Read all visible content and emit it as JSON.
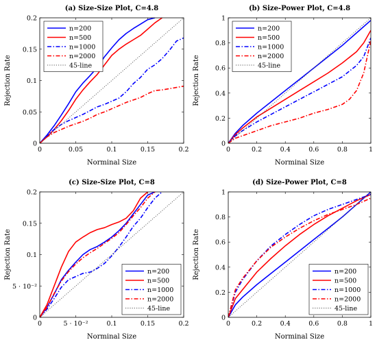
{
  "chart_data": [
    {
      "type": "line",
      "title": "(a) Size-Size Plot, C=4.8",
      "xlabel": "Norminal Size",
      "ylabel": "Rejection Rate",
      "xlim": [
        0,
        0.2
      ],
      "ylim": [
        0,
        0.2
      ],
      "xticks": [
        "0",
        "0.05",
        "0.1",
        "0.15",
        "0.2"
      ],
      "yticks": [
        "0",
        "0.05",
        "0.1",
        "0.15",
        "0.2"
      ],
      "legend_position": "top-left",
      "series": [
        {
          "name": "n=200",
          "color": "#0000ff",
          "dash": "solid",
          "x": [
            0,
            0.01,
            0.02,
            0.03,
            0.04,
            0.05,
            0.06,
            0.07,
            0.08,
            0.09,
            0.1,
            0.11,
            0.12,
            0.13,
            0.14,
            0.15,
            0.16
          ],
          "y": [
            0,
            0.013,
            0.028,
            0.045,
            0.063,
            0.082,
            0.096,
            0.108,
            0.121,
            0.138,
            0.152,
            0.165,
            0.175,
            0.183,
            0.19,
            0.197,
            0.2
          ]
        },
        {
          "name": "n=500",
          "color": "#ff0000",
          "dash": "solid",
          "x": [
            0,
            0.01,
            0.02,
            0.03,
            0.04,
            0.05,
            0.06,
            0.07,
            0.08,
            0.09,
            0.1,
            0.11,
            0.12,
            0.13,
            0.14,
            0.15,
            0.16,
            0.17
          ],
          "y": [
            0,
            0.01,
            0.022,
            0.036,
            0.052,
            0.07,
            0.085,
            0.098,
            0.11,
            0.125,
            0.14,
            0.15,
            0.158,
            0.165,
            0.172,
            0.182,
            0.192,
            0.2
          ]
        },
        {
          "name": "n=1000",
          "color": "#0000ff",
          "dash": "dashdot",
          "x": [
            0,
            0.01,
            0.02,
            0.03,
            0.04,
            0.05,
            0.06,
            0.07,
            0.08,
            0.09,
            0.1,
            0.11,
            0.12,
            0.13,
            0.14,
            0.15,
            0.16,
            0.17,
            0.18,
            0.19,
            0.2
          ],
          "y": [
            0,
            0.012,
            0.022,
            0.03,
            0.036,
            0.041,
            0.046,
            0.052,
            0.058,
            0.062,
            0.067,
            0.072,
            0.082,
            0.095,
            0.105,
            0.118,
            0.125,
            0.135,
            0.148,
            0.163,
            0.168
          ]
        },
        {
          "name": "n=2000",
          "color": "#ff0000",
          "dash": "dashdot",
          "x": [
            0,
            0.01,
            0.02,
            0.03,
            0.04,
            0.05,
            0.06,
            0.07,
            0.08,
            0.09,
            0.1,
            0.11,
            0.12,
            0.13,
            0.14,
            0.15,
            0.16,
            0.17,
            0.18,
            0.19,
            0.2
          ],
          "y": [
            0,
            0.01,
            0.017,
            0.022,
            0.027,
            0.031,
            0.035,
            0.04,
            0.046,
            0.05,
            0.055,
            0.06,
            0.065,
            0.069,
            0.073,
            0.079,
            0.084,
            0.085,
            0.087,
            0.089,
            0.091
          ]
        },
        {
          "name": "45-line",
          "color": "#555555",
          "dash": "dotted",
          "x": [
            0,
            0.2
          ],
          "y": [
            0,
            0.2
          ]
        }
      ]
    },
    {
      "type": "line",
      "title": "(b) Size-Power Plot, C=4.8",
      "xlabel": "Norminal Size",
      "ylabel": "Rejection Rate",
      "xlim": [
        0,
        1
      ],
      "ylim": [
        0,
        1
      ],
      "xticks": [
        "0",
        "0.2",
        "0.4",
        "0.6",
        "0.8",
        "1"
      ],
      "yticks": [
        "0",
        "0.2",
        "0.4",
        "0.6",
        "0.8",
        "1"
      ],
      "legend_position": "top-left",
      "series": [
        {
          "name": "n=200",
          "color": "#0000ff",
          "dash": "solid",
          "x": [
            0,
            0.05,
            0.1,
            0.2,
            0.3,
            0.4,
            0.5,
            0.6,
            0.7,
            0.8,
            0.9,
            1.0
          ],
          "y": [
            0,
            0.08,
            0.14,
            0.24,
            0.33,
            0.42,
            0.51,
            0.6,
            0.69,
            0.78,
            0.88,
            0.98
          ]
        },
        {
          "name": "n=500",
          "color": "#ff0000",
          "dash": "solid",
          "x": [
            0,
            0.05,
            0.1,
            0.2,
            0.3,
            0.4,
            0.5,
            0.6,
            0.7,
            0.8,
            0.9,
            0.95,
            1.0
          ],
          "y": [
            0,
            0.07,
            0.12,
            0.21,
            0.28,
            0.35,
            0.42,
            0.49,
            0.56,
            0.64,
            0.73,
            0.8,
            0.9
          ]
        },
        {
          "name": "n=1000",
          "color": "#0000ff",
          "dash": "dashdot",
          "x": [
            0,
            0.05,
            0.1,
            0.2,
            0.3,
            0.4,
            0.5,
            0.6,
            0.7,
            0.8,
            0.9,
            0.95,
            1.0
          ],
          "y": [
            0,
            0.06,
            0.1,
            0.17,
            0.23,
            0.29,
            0.35,
            0.41,
            0.47,
            0.53,
            0.62,
            0.69,
            0.84
          ]
        },
        {
          "name": "n=2000",
          "color": "#ff0000",
          "dash": "dashdot",
          "x": [
            0,
            0.05,
            0.1,
            0.2,
            0.3,
            0.4,
            0.5,
            0.6,
            0.7,
            0.8,
            0.85,
            0.9,
            0.95,
            1.0
          ],
          "y": [
            0,
            0.04,
            0.06,
            0.1,
            0.14,
            0.17,
            0.2,
            0.24,
            0.27,
            0.31,
            0.35,
            0.42,
            0.56,
            0.82
          ]
        },
        {
          "name": "45-line",
          "color": "#555555",
          "dash": "dotted",
          "x": [
            0,
            1
          ],
          "y": [
            0,
            1
          ]
        }
      ]
    },
    {
      "type": "line",
      "title": "(c) Size-Size Plot, C=8",
      "xlabel": "Norminal Size",
      "ylabel": "Rejection Rate",
      "xlim": [
        0,
        0.2
      ],
      "ylim": [
        0,
        0.2
      ],
      "xticks": [
        "0",
        "5 · 10⁻²",
        "0.1",
        "0.15",
        "0.2"
      ],
      "yticks": [
        "0",
        "5 · 10⁻²",
        "0.1",
        "0.15",
        "0.2"
      ],
      "legend_position": "bottom-right",
      "series": [
        {
          "name": "n=200",
          "color": "#0000ff",
          "dash": "solid",
          "x": [
            0,
            0.01,
            0.02,
            0.03,
            0.04,
            0.05,
            0.06,
            0.07,
            0.08,
            0.09,
            0.1,
            0.11,
            0.12,
            0.13,
            0.14,
            0.15,
            0.16
          ],
          "y": [
            0,
            0.016,
            0.037,
            0.06,
            0.075,
            0.088,
            0.1,
            0.108,
            0.113,
            0.12,
            0.128,
            0.138,
            0.15,
            0.165,
            0.18,
            0.195,
            0.2
          ]
        },
        {
          "name": "n=500",
          "color": "#ff0000",
          "dash": "solid",
          "x": [
            0,
            0.01,
            0.02,
            0.03,
            0.04,
            0.05,
            0.06,
            0.07,
            0.08,
            0.09,
            0.1,
            0.11,
            0.12,
            0.13,
            0.14,
            0.15
          ],
          "y": [
            0,
            0.02,
            0.05,
            0.08,
            0.105,
            0.12,
            0.128,
            0.135,
            0.14,
            0.143,
            0.148,
            0.152,
            0.158,
            0.17,
            0.19,
            0.2
          ]
        },
        {
          "name": "n=1000",
          "color": "#0000ff",
          "dash": "dashdot",
          "x": [
            0,
            0.01,
            0.02,
            0.03,
            0.04,
            0.05,
            0.06,
            0.07,
            0.08,
            0.09,
            0.1,
            0.11,
            0.12,
            0.13,
            0.14,
            0.15,
            0.16,
            0.17
          ],
          "y": [
            0,
            0.013,
            0.03,
            0.048,
            0.06,
            0.065,
            0.07,
            0.072,
            0.078,
            0.086,
            0.098,
            0.112,
            0.128,
            0.145,
            0.158,
            0.175,
            0.19,
            0.2
          ]
        },
        {
          "name": "n=2000",
          "color": "#ff0000",
          "dash": "dashdot",
          "x": [
            0,
            0.01,
            0.02,
            0.03,
            0.04,
            0.05,
            0.06,
            0.07,
            0.08,
            0.09,
            0.1,
            0.11,
            0.12,
            0.13,
            0.14,
            0.15,
            0.16
          ],
          "y": [
            0,
            0.016,
            0.038,
            0.058,
            0.073,
            0.085,
            0.095,
            0.103,
            0.11,
            0.118,
            0.126,
            0.135,
            0.148,
            0.162,
            0.175,
            0.19,
            0.2
          ]
        },
        {
          "name": "45-line",
          "color": "#555555",
          "dash": "dotted",
          "x": [
            0,
            0.2
          ],
          "y": [
            0,
            0.2
          ]
        }
      ]
    },
    {
      "type": "line",
      "title": "(d) Size-Power Plot, C=8",
      "xlabel": "Norminal Size",
      "ylabel": "Rejection Rate",
      "xlim": [
        0,
        1
      ],
      "ylim": [
        0,
        1
      ],
      "xticks": [
        "0",
        "0.2",
        "0.4",
        "0.6",
        "0.8",
        "1"
      ],
      "yticks": [
        "0",
        "0.2",
        "0.4",
        "0.6",
        "0.8",
        "1"
      ],
      "legend_position": "bottom-right",
      "series": [
        {
          "name": "n=200",
          "color": "#0000ff",
          "dash": "solid",
          "x": [
            0,
            0.05,
            0.1,
            0.2,
            0.3,
            0.4,
            0.5,
            0.6,
            0.7,
            0.8,
            0.9,
            1.0
          ],
          "y": [
            0,
            0.1,
            0.16,
            0.26,
            0.35,
            0.44,
            0.53,
            0.62,
            0.71,
            0.8,
            0.9,
            1.0
          ]
        },
        {
          "name": "n=500",
          "color": "#ff0000",
          "dash": "solid",
          "x": [
            0,
            0.05,
            0.1,
            0.2,
            0.3,
            0.4,
            0.5,
            0.6,
            0.7,
            0.8,
            0.9,
            1.0
          ],
          "y": [
            0,
            0.15,
            0.22,
            0.36,
            0.47,
            0.57,
            0.66,
            0.74,
            0.81,
            0.87,
            0.93,
            0.98
          ]
        },
        {
          "name": "n=1000",
          "color": "#0000ff",
          "dash": "dashdot",
          "x": [
            0,
            0.05,
            0.1,
            0.2,
            0.3,
            0.4,
            0.5,
            0.6,
            0.7,
            0.8,
            0.9,
            1.0
          ],
          "y": [
            0,
            0.2,
            0.3,
            0.45,
            0.57,
            0.66,
            0.74,
            0.81,
            0.86,
            0.9,
            0.94,
            0.98
          ]
        },
        {
          "name": "n=2000",
          "color": "#ff0000",
          "dash": "dashdot",
          "x": [
            0,
            0.05,
            0.1,
            0.2,
            0.3,
            0.4,
            0.5,
            0.6,
            0.7,
            0.8,
            0.9,
            1.0
          ],
          "y": [
            0,
            0.22,
            0.31,
            0.45,
            0.56,
            0.64,
            0.71,
            0.77,
            0.82,
            0.86,
            0.9,
            0.95
          ]
        },
        {
          "name": "45-line",
          "color": "#555555",
          "dash": "dotted",
          "x": [
            0,
            1
          ],
          "y": [
            0,
            1
          ]
        }
      ]
    }
  ]
}
